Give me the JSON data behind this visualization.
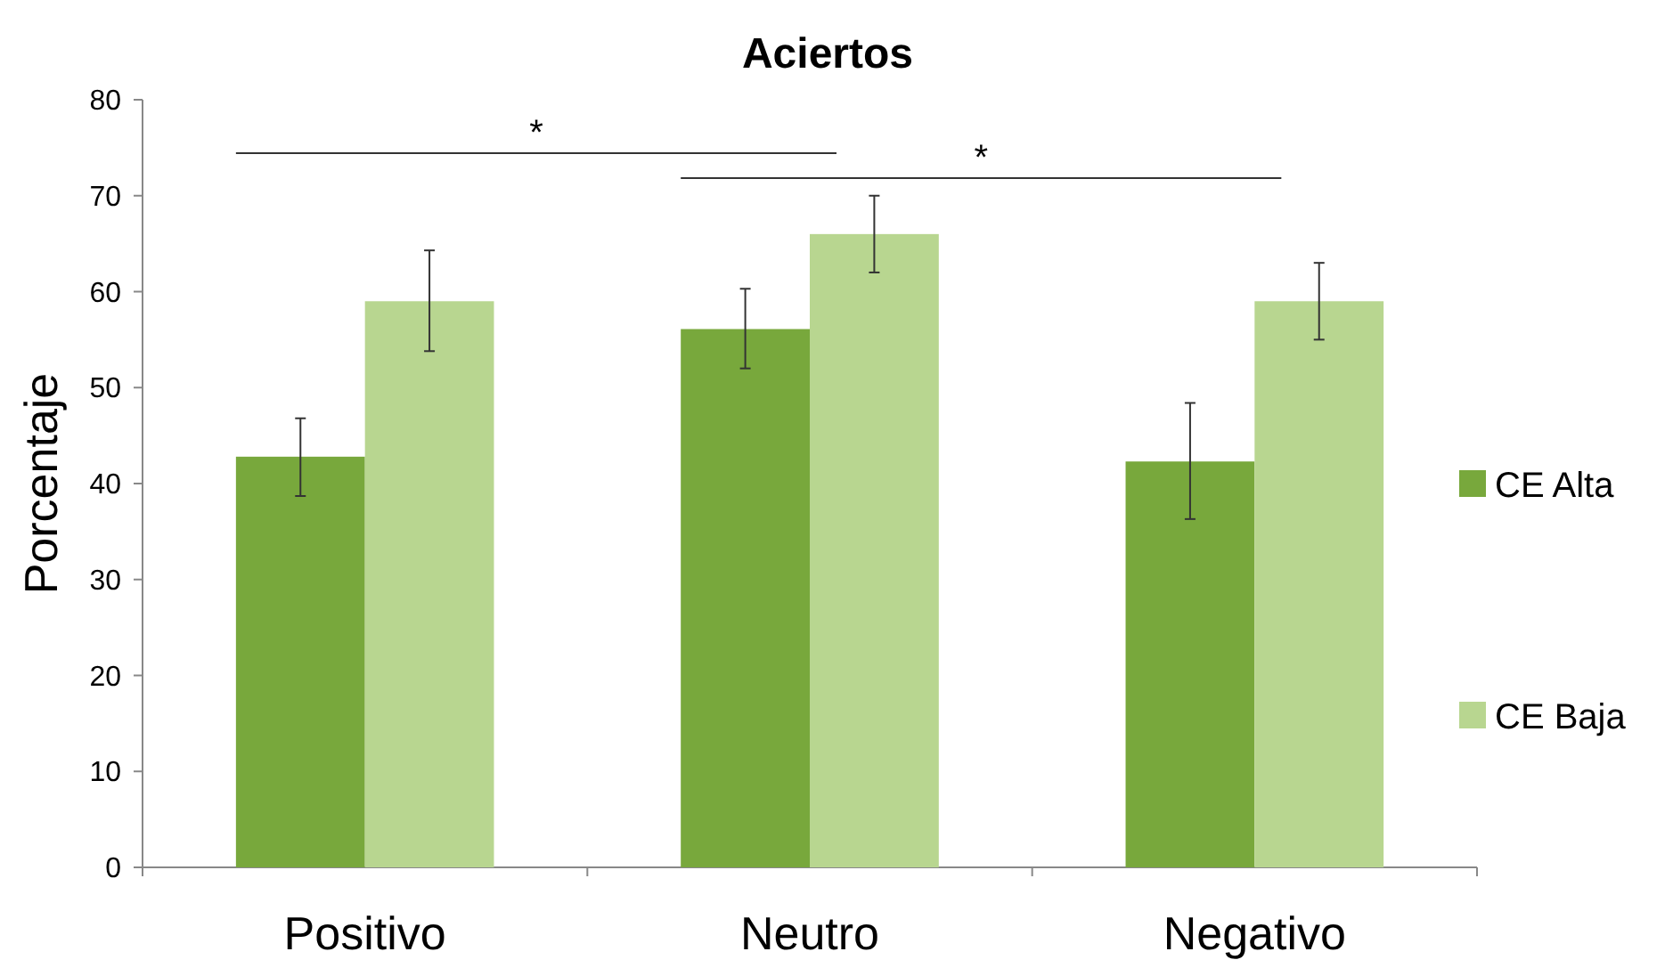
{
  "chart_data": {
    "type": "bar",
    "title": "Aciertos",
    "ylabel": "Porcentaje",
    "categories": [
      "Positivo",
      "Neutro",
      "Negativo"
    ],
    "series": [
      {
        "name": "CE Alta",
        "color": "#78a83c",
        "values": [
          42.8,
          56.1,
          42.3
        ],
        "errors": [
          [
            38.7,
            46.8
          ],
          [
            52.0,
            60.3
          ],
          [
            36.3,
            48.4
          ]
        ]
      },
      {
        "name": "CE Baja",
        "color": "#b8d690",
        "values": [
          59.0,
          66.0,
          59.0
        ],
        "errors": [
          [
            53.8,
            64.3
          ],
          [
            62.0,
            70.0
          ],
          [
            55.0,
            63.0
          ]
        ]
      }
    ],
    "ylim": [
      0,
      80
    ],
    "yticks": [
      0,
      10,
      20,
      30,
      40,
      50,
      60,
      70,
      80
    ],
    "grid": false,
    "legend": "right",
    "annotations": [
      "*",
      "*"
    ]
  }
}
